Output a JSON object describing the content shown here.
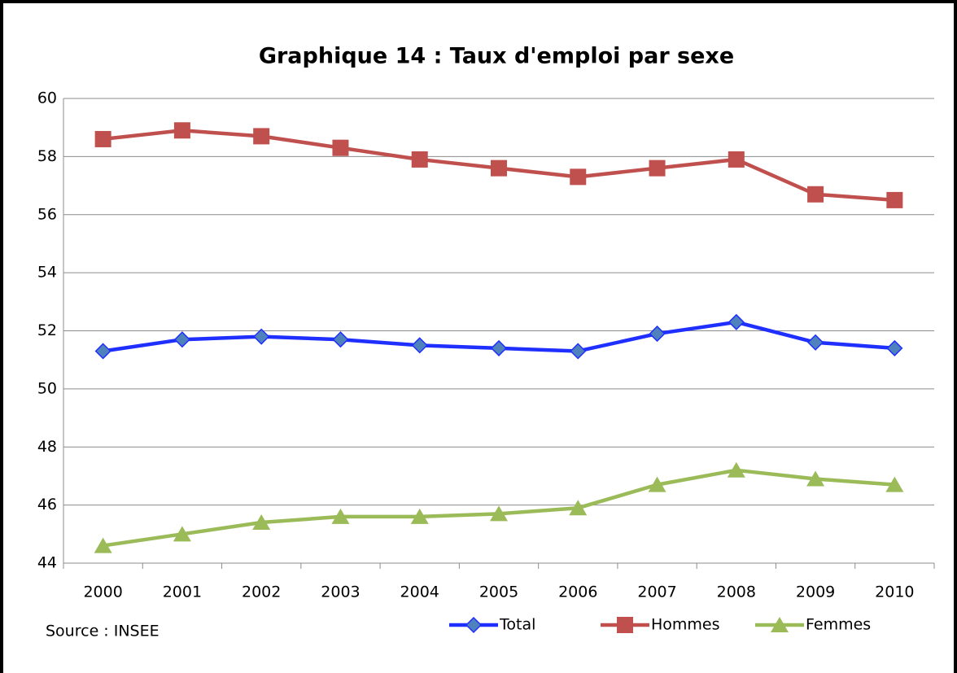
{
  "chart_data": {
    "type": "line",
    "title": "Graphique 14 : Taux d'emploi par sexe",
    "annotation": "Source : INSEE",
    "categories": [
      "2000",
      "2001",
      "2002",
      "2003",
      "2004",
      "2005",
      "2006",
      "2007",
      "2008",
      "2009",
      "2010"
    ],
    "series": [
      {
        "name": "Total",
        "color": "#1f2fff",
        "marker": "diamond",
        "marker_color": "#4f81bd",
        "values": [
          51.3,
          51.7,
          51.8,
          51.7,
          51.5,
          51.4,
          51.3,
          51.9,
          52.3,
          51.6,
          51.4
        ]
      },
      {
        "name": "Hommes",
        "color": "#c0504d",
        "marker": "square",
        "marker_color": "#c0504d",
        "values": [
          58.6,
          58.9,
          58.7,
          58.3,
          57.9,
          57.6,
          57.3,
          57.6,
          57.9,
          56.7,
          56.5
        ]
      },
      {
        "name": "Femmes",
        "color": "#9bbb59",
        "marker": "triangle",
        "marker_color": "#9bbb59",
        "values": [
          44.6,
          45.0,
          45.4,
          45.6,
          45.6,
          45.7,
          45.9,
          46.7,
          47.2,
          46.9,
          46.7
        ]
      }
    ],
    "ylim": [
      44,
      60
    ],
    "yticks": [
      44,
      46,
      48,
      50,
      52,
      54,
      56,
      58,
      60
    ],
    "grid": true,
    "legend": "bottom"
  }
}
